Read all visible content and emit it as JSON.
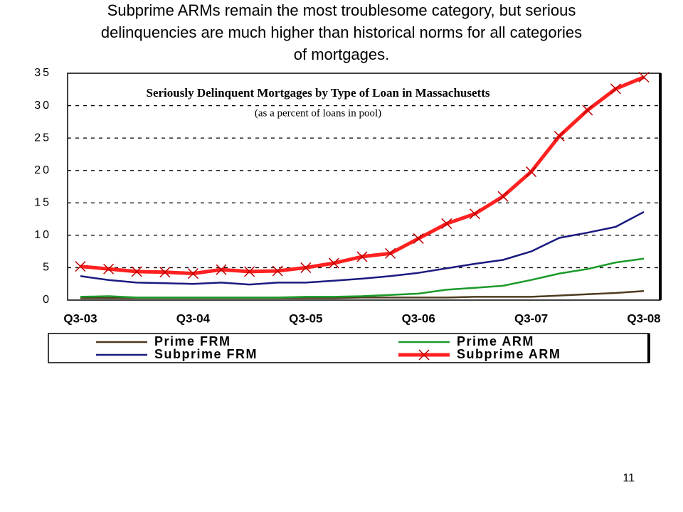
{
  "slide_title": [
    "Subprime ARMs remain the most troublesome category, but serious",
    "delinquencies are much higher than historical norms for all categories",
    "of mortgages."
  ],
  "page_number": "11",
  "chart_data": {
    "type": "line",
    "title": "Seriously Delinquent Mortgages by Type of Loan in Massachusetts",
    "subtitle": "(as a percent of loans in pool)",
    "categories": [
      "Q3-03",
      null,
      null,
      null,
      "Q3-04",
      null,
      null,
      null,
      "Q3-05",
      null,
      null,
      null,
      "Q3-06",
      null,
      null,
      null,
      "Q3-07",
      null,
      null,
      null,
      "Q3-08"
    ],
    "series": [
      {
        "name": "Prime FRM",
        "color": "#4d3b1f",
        "values": [
          0.3,
          0.3,
          0.3,
          0.3,
          0.3,
          0.3,
          0.3,
          0.3,
          0.3,
          0.3,
          0.4,
          0.4,
          0.4,
          0.4,
          0.5,
          0.5,
          0.5,
          0.7,
          0.9,
          1.1,
          1.4
        ]
      },
      {
        "name": "Prime ARM",
        "color": "#1a9a2a",
        "values": [
          0.5,
          0.6,
          0.4,
          0.4,
          0.4,
          0.4,
          0.4,
          0.4,
          0.5,
          0.5,
          0.6,
          0.8,
          1.0,
          1.6,
          1.9,
          2.2,
          3.1,
          4.1,
          4.8,
          5.8,
          6.4
        ]
      },
      {
        "name": "Subprime FRM",
        "color": "#1a1a80",
        "values": [
          3.7,
          3.1,
          2.7,
          2.6,
          2.5,
          2.7,
          2.4,
          2.7,
          2.7,
          3.0,
          3.3,
          3.7,
          4.2,
          4.9,
          5.6,
          6.2,
          7.5,
          9.6,
          10.4,
          11.3,
          13.6
        ]
      },
      {
        "name": "Subprime ARM",
        "color": "#ff2020",
        "marker_color": "#c00000",
        "values": [
          5.2,
          4.8,
          4.4,
          4.3,
          4.1,
          4.7,
          4.4,
          4.5,
          5.0,
          5.7,
          6.7,
          7.2,
          9.5,
          11.8,
          13.3,
          16.0,
          19.8,
          25.3,
          29.3,
          32.6,
          34.4
        ]
      }
    ],
    "ylim": [
      0,
      35
    ],
    "yticks": [
      0,
      5,
      10,
      15,
      20,
      25,
      30,
      35
    ],
    "grid": true
  }
}
